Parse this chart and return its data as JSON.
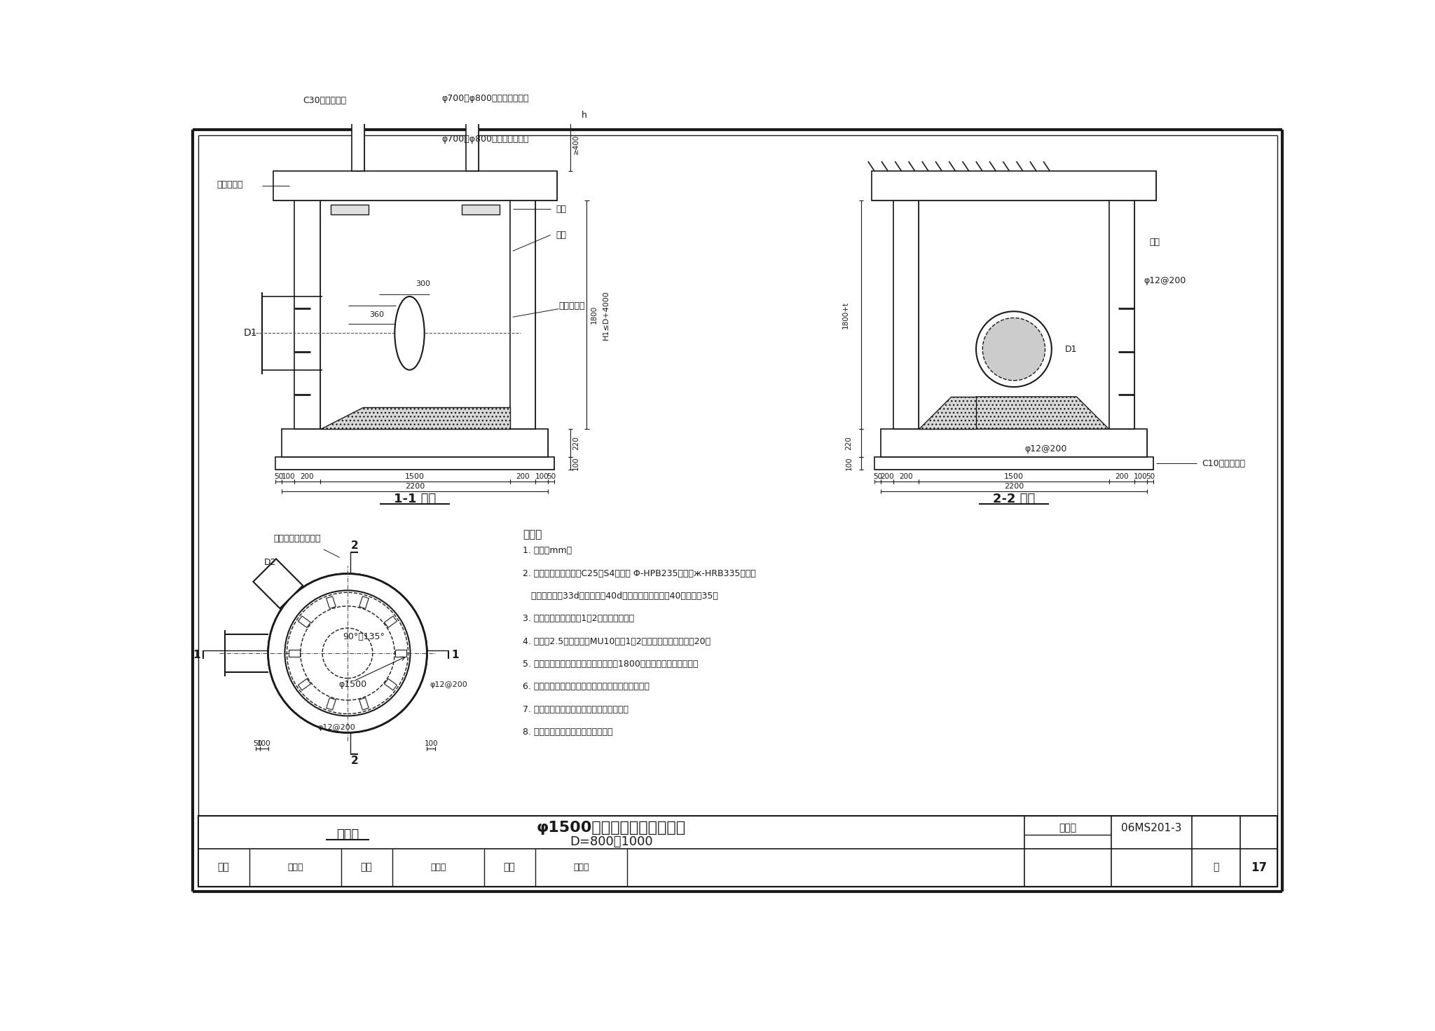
{
  "bg_color": "#ffffff",
  "line_color": "#1a1a1a",
  "section1_title": "1-1 剖面",
  "section2_title": "2-2 剖面",
  "plan_title": "平面图",
  "notes_title": "说明：",
  "notes": [
    "1. 单位：mm。",
    "2. 井墙及底板混凝土为C25、S4；钉筋 Φ-HPB235级钉、ж-HRB335级钉；",
    "   钉筋锁固长度33d；搭接长度40d；基础下层钉保护屄40，其他为35。",
    "3. 座枳、抓三角灯均用1：2防水水泥沙浆。",
    "4. 流槽用2.5水泥沙浆技MU10砖；1：2防水水泥沙浆抚面，厔20。",
    "5. 井室高度自井底至盖板底净高一般为1800，埋深不足时适情减少。",
    "6. 接入支管超挎部分用级配砂石、混凝土或砖康实。",
    "7. 顶平接入支管见图形排水检查井尺寸表。",
    "8. 井筒及井盖的安装做法见井筒图。"
  ],
  "title_main": "φ1500圆形混凝土雨水检查井",
  "title_sub": "D=800～1000",
  "atlas_label": "图集号",
  "atlas_no": "06MS201-3",
  "page_label": "页",
  "page_no": "17",
  "shen_he": "审核",
  "shen_he_name": "王山山",
  "jiao_dui": "校对",
  "jiao_dui_name": "孟尧东",
  "she_ji": "设计",
  "she_ji_name": "温丽晓",
  "label_c30": "C30混凝土井圈",
  "label_cover_iron": "φ700或φ800铸铁井盖及支座",
  "label_shaft": "φ700或φ800预制混凝土井筒",
  "label_cover_plate": "混凝土盖板",
  "label_step": "踏步",
  "label_seat": "座枳",
  "label_pipe_rough": "管外壁凿毛",
  "label_c10": "C10混凝土垫层",
  "label_rebar1": "φ12@200",
  "label_rebar2": "φ12@200",
  "label_d1": "D1",
  "label_d2": "D2",
  "label_top_pipe": "顶平接入支管见说明",
  "label_90_135": "90°～135°",
  "label_phi1500": "φ1500",
  "label_phi12_200a": "φ12@200",
  "label_phi12_200b": "φ12@200"
}
